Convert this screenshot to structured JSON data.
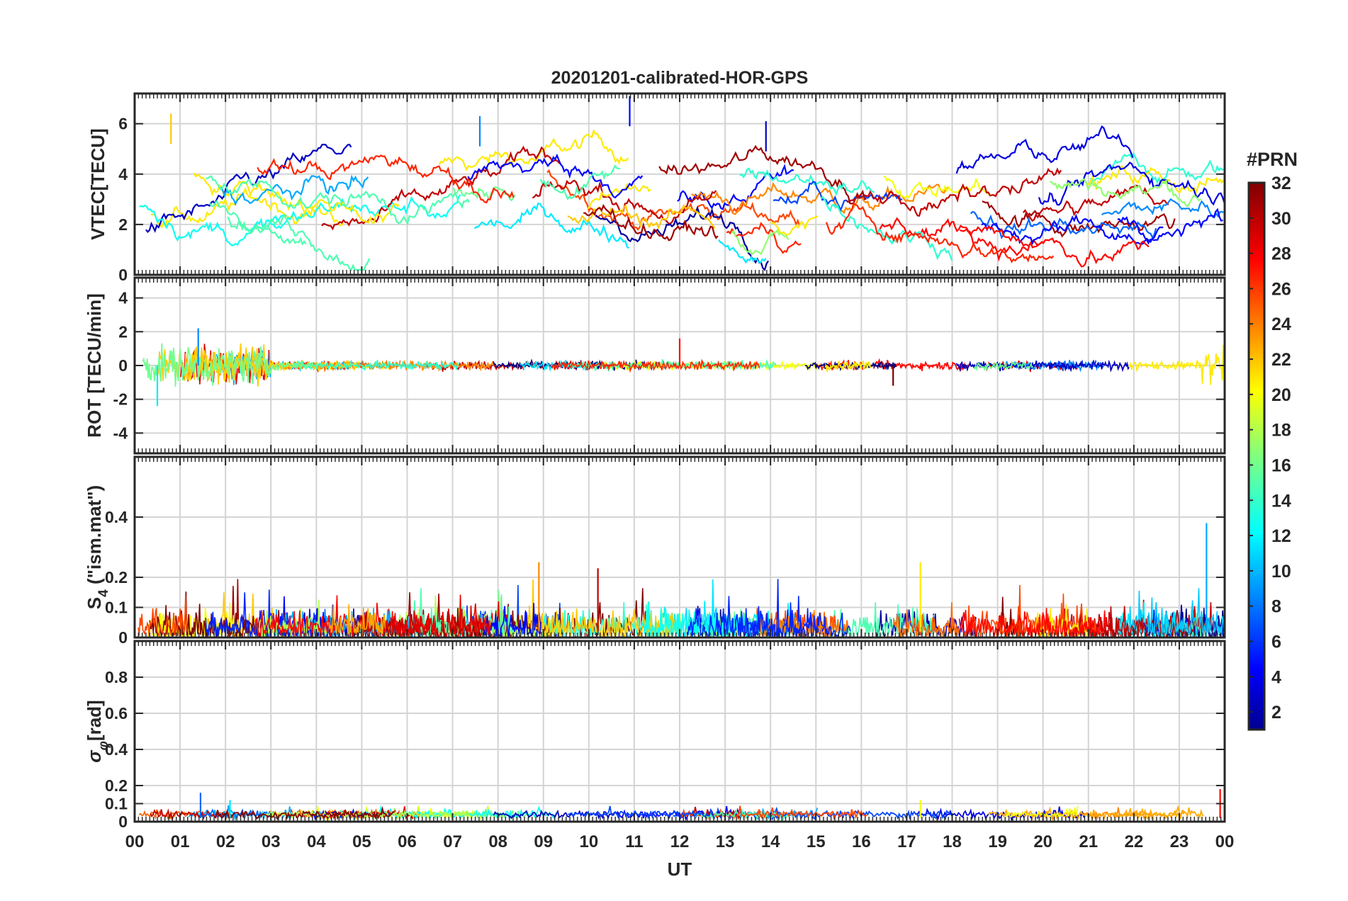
{
  "chart_data": {
    "type": "line",
    "title": "20201201-calibrated-HOR-GPS",
    "xlabel": "UT",
    "xlim": [
      0,
      24
    ],
    "xticks": [
      "00",
      "01",
      "02",
      "03",
      "04",
      "05",
      "06",
      "07",
      "08",
      "09",
      "10",
      "11",
      "12",
      "13",
      "14",
      "15",
      "16",
      "17",
      "18",
      "19",
      "20",
      "21",
      "22",
      "23",
      "00"
    ],
    "colorbar": {
      "label": "#PRN",
      "range": [
        1,
        32
      ],
      "ticks": [
        "2",
        "4",
        "6",
        "8",
        "10",
        "12",
        "14",
        "16",
        "18",
        "20",
        "22",
        "24",
        "26",
        "28",
        "30",
        "32"
      ]
    },
    "panels": [
      {
        "id": "vtec",
        "ylabel": "VTEC[TECU]",
        "ylim": [
          0,
          7.2
        ],
        "yticks": [
          "0",
          "2",
          "4",
          "6"
        ],
        "yticks_values": [
          0,
          2,
          4,
          6
        ],
        "series_description": "per-PRN vertical TEC arcs, mostly 1.5-5 TECU, peaks near 6-7 TECU around 07-11 UT",
        "sample_peaks": [
          {
            "prn": 9,
            "t": 7.6,
            "value": 6.3
          },
          {
            "prn": 5,
            "t": 10.9,
            "value": 7.1
          },
          {
            "prn": 3,
            "t": 13.9,
            "value": 6.1
          },
          {
            "prn": 22,
            "t": 0.8,
            "value": 6.4
          }
        ]
      },
      {
        "id": "rot",
        "ylabel": "ROT [TECU/min]",
        "ylim": [
          -5.2,
          5.2
        ],
        "yticks": [
          "-4",
          "-2",
          "0",
          "2",
          "4"
        ],
        "yticks_values": [
          -4,
          -2,
          0,
          2,
          4
        ],
        "series_description": "rate of TEC, fluctuating around 0 with spikes up to about +/-2 near 00-03 UT and 23-24 UT",
        "sample_peaks": [
          {
            "prn": 12,
            "t": 0.5,
            "value": -2.4
          },
          {
            "prn": 9,
            "t": 1.4,
            "value": 2.2
          },
          {
            "prn": 32,
            "t": 16.7,
            "value": -1.2
          },
          {
            "prn": 28,
            "t": 12.0,
            "value": 1.6
          }
        ]
      },
      {
        "id": "s4",
        "ylabel_main": "S",
        "ylabel_sub": "4",
        "ylabel_rest": " (\"ism.mat\")",
        "ylim": [
          0,
          0.6
        ],
        "yticks": [
          "0",
          "0.1",
          "0.2",
          "0.4"
        ],
        "yticks_values": [
          0,
          0.1,
          0.2,
          0.4
        ],
        "series_description": "amplitude scintillation index, mostly below 0.1 with bursts to about 0.2-0.25",
        "sample_peaks": [
          {
            "prn": 10,
            "t": 23.6,
            "value": 0.38
          },
          {
            "prn": 24,
            "t": 8.9,
            "value": 0.25
          },
          {
            "prn": 30,
            "t": 10.2,
            "value": 0.23
          },
          {
            "prn": 21,
            "t": 17.3,
            "value": 0.25
          }
        ]
      },
      {
        "id": "sigma_phi",
        "ylabel_main": "σ",
        "ylabel_sub": "φ",
        "ylabel_rest": "[rad]",
        "ylim": [
          0,
          1.0
        ],
        "yticks": [
          "0",
          "0.1",
          "0.2",
          "0.4",
          "0.6",
          "0.8"
        ],
        "yticks_values": [
          0,
          0.1,
          0.2,
          0.4,
          0.6,
          0.8
        ],
        "series_description": "phase scintillation index, near 0.03-0.1 rad throughout the day",
        "sample_peaks": [
          {
            "prn": 8,
            "t": 1.45,
            "value": 0.16
          },
          {
            "prn": 12,
            "t": 2.1,
            "value": 0.12
          },
          {
            "prn": 20,
            "t": 17.3,
            "value": 0.12
          },
          {
            "prn": 28,
            "t": 23.9,
            "value": 0.18
          }
        ]
      }
    ]
  }
}
